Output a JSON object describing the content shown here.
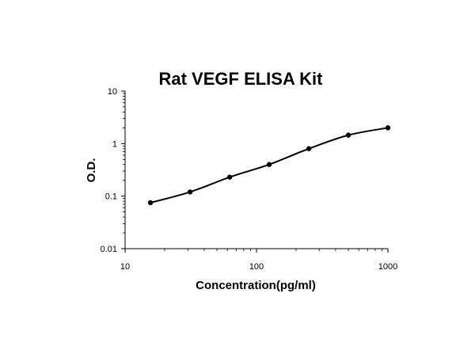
{
  "chart_data": {
    "type": "line",
    "title": "Rat VEGF ELISA Kit",
    "xlabel": "Concentration(pg/ml)",
    "ylabel": "O.D.",
    "x_scale": "log",
    "y_scale": "log",
    "xlim": [
      10,
      1000
    ],
    "ylim": [
      0.01,
      10
    ],
    "x_ticks": [
      "10",
      "100",
      "1000"
    ],
    "y_ticks": [
      "0.01",
      "0.1",
      "1",
      "10"
    ],
    "grid": false,
    "legend": "none",
    "series": [
      {
        "x": [
          15.6,
          31.25,
          62.5,
          125,
          250,
          500,
          1000
        ],
        "y": [
          0.075,
          0.12,
          0.23,
          0.4,
          0.8,
          1.45,
          2.0
        ]
      }
    ],
    "colors": {
      "line": "#000000",
      "marker": "#000000"
    }
  }
}
